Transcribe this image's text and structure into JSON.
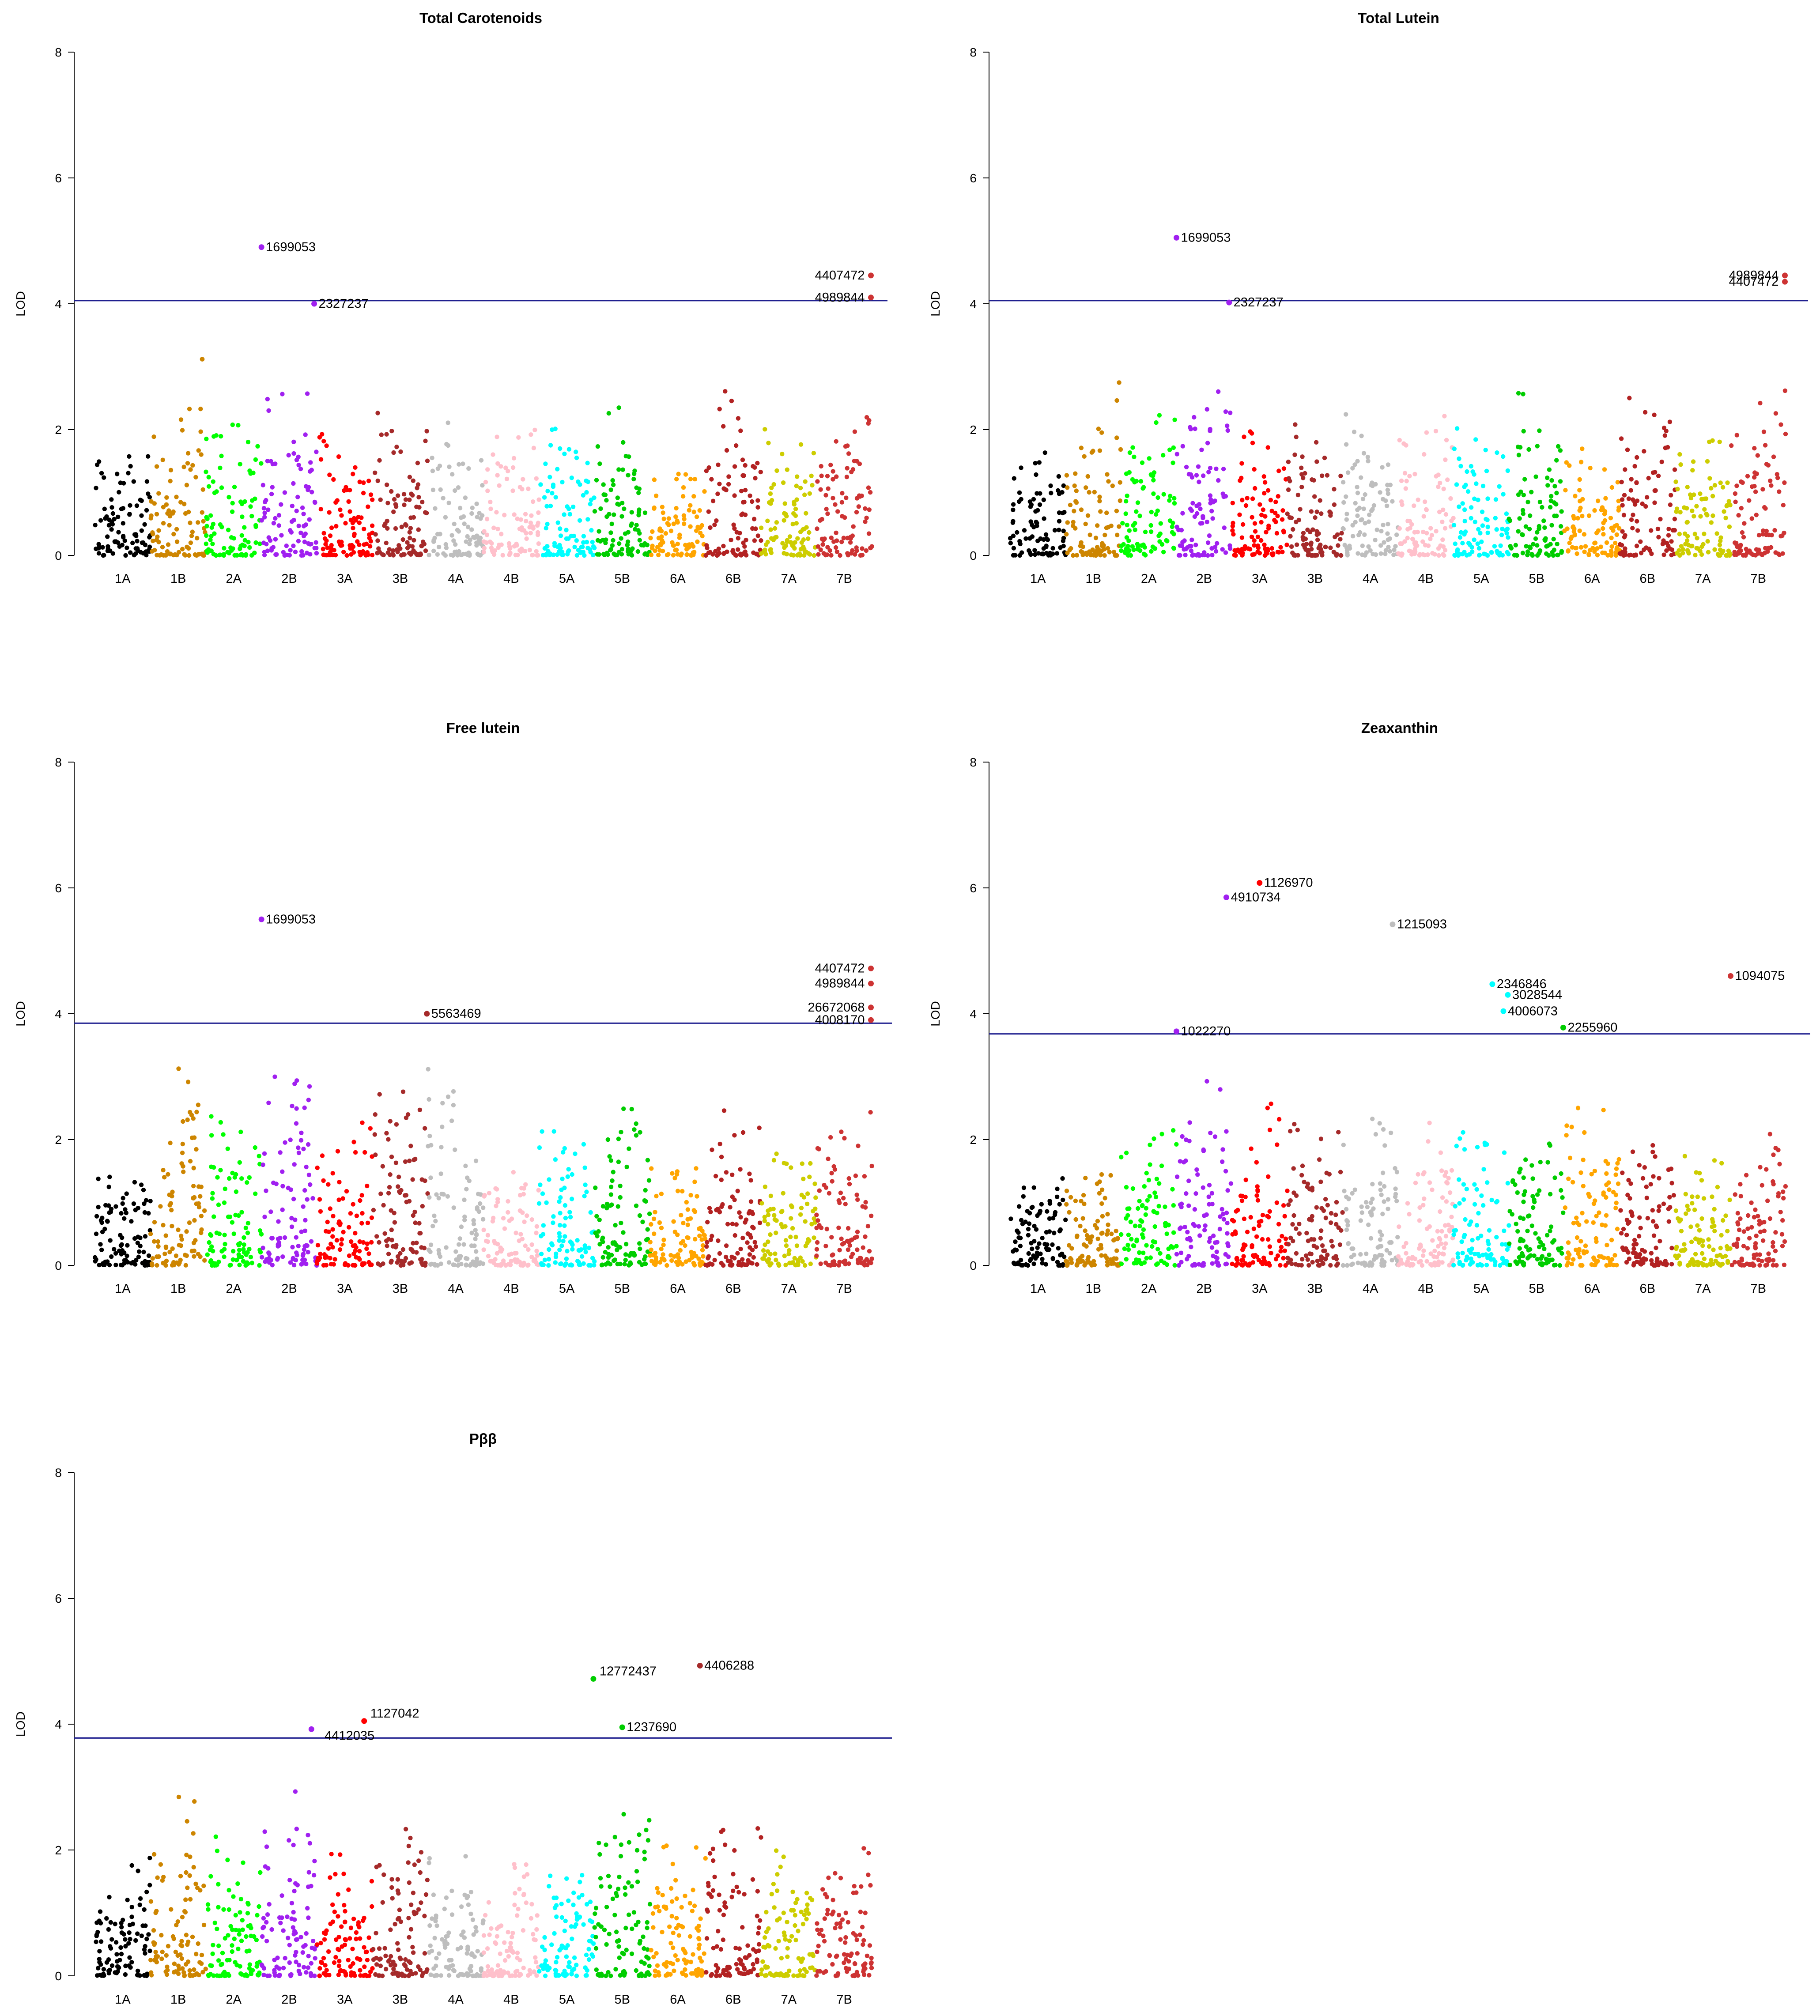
{
  "chart_data": [
    {
      "type": "scatter",
      "title": "Total Carotenoids",
      "xlabel": "",
      "ylabel": "LOD",
      "ylim": [
        0,
        8
      ],
      "yticks": [
        0,
        2,
        4,
        6,
        8
      ],
      "threshold": 4.05,
      "chromosomes": [
        "1A",
        "1B",
        "2A",
        "2B",
        "3A",
        "3B",
        "4A",
        "4B",
        "5A",
        "5B",
        "6A",
        "6B",
        "7A",
        "7B"
      ],
      "peaks": [
        1.5,
        1.7,
        2.0,
        3.4,
        2.2,
        2.2,
        2.6,
        2.6,
        2.0,
        1.6,
        2.4,
        2.0,
        2.4,
        1.7,
        2.0,
        2.1,
        2.1,
        1.9,
        2.7,
        2.0,
        1.7,
        1.4,
        2.7,
        2.5,
        2.1,
        2.0,
        2.0,
        2.6
      ],
      "markers": [
        {
          "id": "1699053",
          "chrom": "2B",
          "pos": 0.0,
          "lod": 4.9,
          "color": "#a020f0",
          "label_side": "right"
        },
        {
          "id": "2327237",
          "chrom": "2B",
          "pos": 0.95,
          "lod": 4.0,
          "color": "#a020f0",
          "label_side": "right"
        },
        {
          "id": "4407472",
          "chrom": "7B",
          "pos": 0.98,
          "lod": 4.45,
          "color": "#cd3333",
          "label_side": "left"
        },
        {
          "id": "4989844",
          "chrom": "7B",
          "pos": 0.98,
          "lod": 4.1,
          "color": "#cd3333",
          "label_side": "left"
        }
      ]
    },
    {
      "type": "scatter",
      "title": "Total Lutein",
      "xlabel": "",
      "ylabel": "LOD",
      "ylim": [
        0,
        8
      ],
      "yticks": [
        0,
        2,
        4,
        6,
        8
      ],
      "threshold": 4.05,
      "chromosomes": [
        "1A",
        "1B",
        "2A",
        "2B",
        "3A",
        "3B",
        "4A",
        "4B",
        "5A",
        "5B",
        "6A",
        "6B",
        "7A",
        "7B"
      ],
      "peaks": [
        1.6,
        1.7,
        1.8,
        2.8,
        2.0,
        2.3,
        2.4,
        3.0,
        2.1,
        2.2,
        2.2,
        1.8,
        2.3,
        1.7,
        2.0,
        2.4,
        2.1,
        1.9,
        2.7,
        2.0,
        1.8,
        1.4,
        2.6,
        2.3,
        2.0,
        1.9,
        2.1,
        2.7
      ],
      "markers": [
        {
          "id": "1699053",
          "chrom": "2B",
          "pos": 0.0,
          "lod": 5.05,
          "color": "#a020f0",
          "label_side": "right"
        },
        {
          "id": "2327237",
          "chrom": "2B",
          "pos": 0.95,
          "lod": 4.02,
          "color": "#a020f0",
          "label_side": "right"
        },
        {
          "id": "4989844",
          "chrom": "7B",
          "pos": 0.98,
          "lod": 4.45,
          "color": "#cd3333",
          "label_side": "left"
        },
        {
          "id": "4407472",
          "chrom": "7B",
          "pos": 0.98,
          "lod": 4.35,
          "color": "#cd3333",
          "label_side": "left"
        }
      ]
    },
    {
      "type": "scatter",
      "title": "Free lutein",
      "xlabel": "",
      "ylabel": "LOD",
      "ylim": [
        0,
        8
      ],
      "yticks": [
        0,
        2,
        4,
        6,
        8
      ],
      "threshold": 3.85,
      "chromosomes": [
        "1A",
        "1B",
        "2A",
        "2B",
        "3A",
        "3B",
        "4A",
        "4B",
        "5A",
        "5B",
        "6A",
        "6B",
        "7A",
        "7B"
      ],
      "peaks": [
        1.5,
        1.6,
        2.0,
        3.2,
        2.4,
        2.6,
        3.1,
        3.2,
        2.2,
        2.3,
        2.8,
        2.8,
        3.2,
        1.9,
        1.6,
        1.5,
        2.2,
        2.0,
        2.6,
        2.5,
        1.8,
        1.6,
        2.5,
        2.2,
        2.2,
        1.9,
        2.3,
        2.6
      ],
      "markers": [
        {
          "id": "1699053",
          "chrom": "2B",
          "pos": 0.0,
          "lod": 5.5,
          "color": "#a020f0",
          "label_side": "right"
        },
        {
          "id": "5563469",
          "chrom": "3B",
          "pos": 0.98,
          "lod": 4.0,
          "color": "#a52a2a",
          "label_side": "right"
        },
        {
          "id": "4407472",
          "chrom": "7B",
          "pos": 0.98,
          "lod": 4.72,
          "color": "#cd3333",
          "label_side": "left"
        },
        {
          "id": "4989844",
          "chrom": "7B",
          "pos": 0.98,
          "lod": 4.48,
          "color": "#cd3333",
          "label_side": "left"
        },
        {
          "id": "26672068",
          "chrom": "7B",
          "pos": 0.98,
          "lod": 4.1,
          "color": "#cd3333",
          "label_side": "left"
        },
        {
          "id": "4008170",
          "chrom": "7B",
          "pos": 0.98,
          "lod": 3.9,
          "color": "#cd3333",
          "label_side": "left"
        }
      ]
    },
    {
      "type": "scatter",
      "title": "Zeaxanthin",
      "xlabel": "",
      "ylabel": "LOD",
      "ylim": [
        0,
        8
      ],
      "yticks": [
        0,
        2,
        4,
        6,
        8
      ],
      "threshold": 3.68,
      "chromosomes": [
        "1A",
        "1B",
        "2A",
        "2B",
        "3A",
        "3B",
        "4A",
        "4B",
        "5A",
        "5B",
        "6A",
        "6B",
        "7A",
        "7B"
      ],
      "peaks": [
        1.5,
        1.5,
        1.6,
        1.5,
        2.0,
        2.5,
        2.5,
        3.0,
        2.0,
        2.6,
        2.3,
        2.2,
        2.0,
        2.6,
        1.6,
        2.5,
        2.2,
        2.1,
        2.0,
        2.0,
        2.6,
        2.6,
        2.0,
        2.0,
        2.0,
        2.0,
        2.0,
        2.1
      ],
      "markers": [
        {
          "id": "1022270",
          "chrom": "2B",
          "pos": 0.0,
          "lod": 3.72,
          "color": "#a020f0",
          "label_side": "right"
        },
        {
          "id": "4910734",
          "chrom": "2B",
          "pos": 0.9,
          "lod": 5.85,
          "color": "#a020f0",
          "label_side": "right"
        },
        {
          "id": "1126970",
          "chrom": "3A",
          "pos": 0.5,
          "lod": 6.08,
          "color": "#ff0000",
          "label_side": "right"
        },
        {
          "id": "1215093",
          "chrom": "4A",
          "pos": 0.9,
          "lod": 5.42,
          "color": "#bebebe",
          "label_side": "right"
        },
        {
          "id": "2346846",
          "chrom": "5A",
          "pos": 0.7,
          "lod": 4.47,
          "color": "#00ffff",
          "label_side": "right"
        },
        {
          "id": "3028544",
          "chrom": "5A",
          "pos": 0.98,
          "lod": 4.3,
          "color": "#00ffff",
          "label_side": "right"
        },
        {
          "id": "4006073",
          "chrom": "5A",
          "pos": 0.9,
          "lod": 4.04,
          "color": "#00ffff",
          "label_side": "right"
        },
        {
          "id": "2255960",
          "chrom": "5B",
          "pos": 0.98,
          "lod": 3.78,
          "color": "#00cd00",
          "label_side": "right"
        },
        {
          "id": "1094075",
          "chrom": "7B",
          "pos": 0.0,
          "lod": 4.6,
          "color": "#cd3333",
          "label_side": "right"
        }
      ]
    },
    {
      "type": "scatter",
      "title": "Pββ",
      "xlabel": "",
      "ylabel": "LOD",
      "ylim": [
        0,
        8
      ],
      "yticks": [
        0,
        2,
        4,
        6,
        8
      ],
      "threshold": 3.78,
      "chromosomes": [
        "1A",
        "1B",
        "2A",
        "2B",
        "3A",
        "3B",
        "4A",
        "4B",
        "5A",
        "5B",
        "6A",
        "6B",
        "7A",
        "7B"
      ],
      "peaks": [
        1.4,
        1.9,
        2.2,
        3.0,
        2.3,
        2.1,
        2.5,
        3.0,
        2.0,
        1.8,
        2.0,
        2.4,
        2.0,
        2.2,
        1.2,
        2.2,
        1.8,
        1.6,
        2.5,
        2.8,
        2.1,
        2.1,
        2.5,
        2.4,
        2.0,
        2.2,
        1.9,
        2.3
      ],
      "markers": [
        {
          "id": "4412035",
          "chrom": "2B",
          "pos": 0.9,
          "lod": 3.92,
          "color": "#a020f0",
          "label_side": "right_below"
        },
        {
          "id": "1127042",
          "chrom": "3A",
          "pos": 0.85,
          "lod": 4.05,
          "color": "#ff0000",
          "label_side": "right_above"
        },
        {
          "id": "12772437",
          "chrom": "5A",
          "pos": 0.98,
          "lod": 4.72,
          "color": "#00cd00",
          "label_side": "right_above"
        },
        {
          "id": "1237690",
          "chrom": "5B",
          "pos": 0.5,
          "lod": 3.95,
          "color": "#00cd00",
          "label_side": "right"
        },
        {
          "id": "4406288",
          "chrom": "6A",
          "pos": 0.9,
          "lod": 4.93,
          "color": "#a52a2a",
          "label_side": "right"
        }
      ]
    }
  ],
  "colors": {
    "chromosomes": [
      "#000000",
      "#cd8500",
      "#00ff00",
      "#a020f0",
      "#ff0000",
      "#a52a2a",
      "#bebebe",
      "#ffc0cb",
      "#00ffff",
      "#00cd00",
      "#ffa500",
      "#b22222",
      "#cdcd00",
      "#cd3333"
    ],
    "threshold": "#1f1f8f"
  }
}
